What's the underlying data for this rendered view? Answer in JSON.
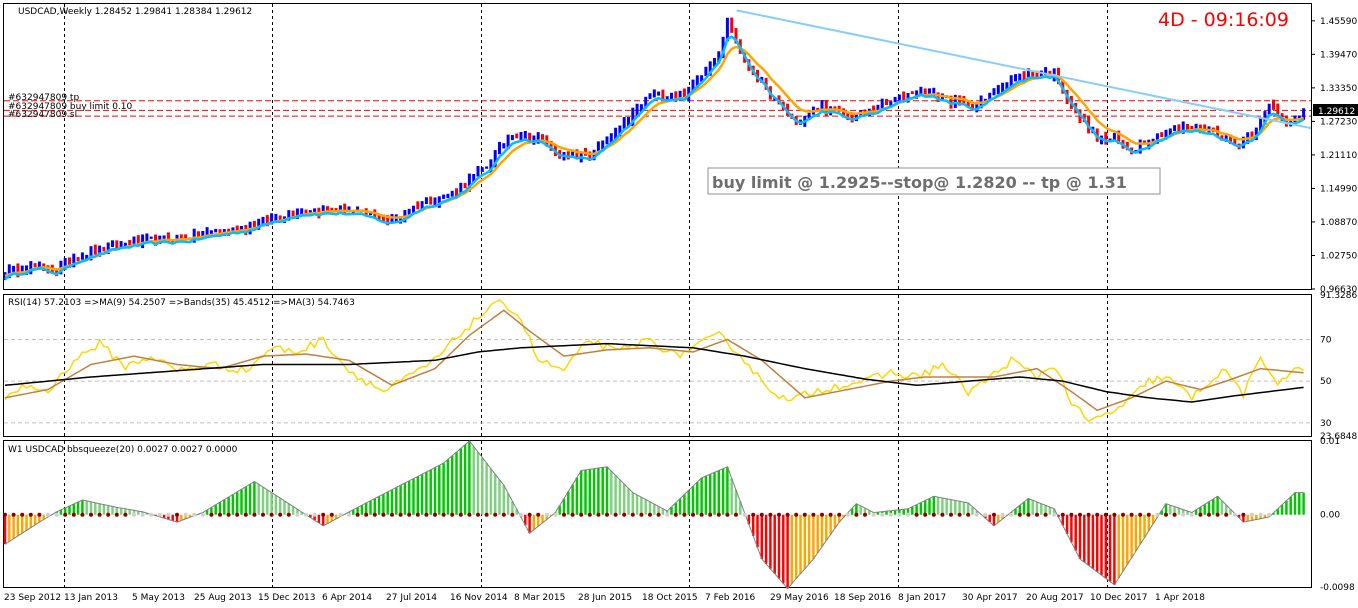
{
  "main_header": "USDCAD,Weekly  1.28452 1.29841 1.28384 1.29612",
  "timer": "4D - 09:16:09",
  "order_labels": [
    "#632947809 tp",
    "#632947809 buy limit 0.10",
    "#632947809 sl"
  ],
  "note": "buy limit @ 1.2925--stop@ 1.2820 -- tp @ 1.31",
  "current_price": "1.29612",
  "rsi_header": "RSI(14) 57.2103  =>MA(9) 54.2507  =>Bands(35) 45.4512  =>MA(3) 54.7463",
  "bb_header": "W1 USDCAD bbsqueeze(20) 0.0027 0.0027 0.0000",
  "x_axis_labels": [
    "23 Sep 2012",
    "13 Jan 2013",
    "5 May 2013",
    "25 Aug 2013",
    "15 Dec 2013",
    "6 Apr 2014",
    "27 Jul 2014",
    "16 Nov 2014",
    "8 Mar 2015",
    "28 Jun 2015",
    "18 Oct 2015",
    "7 Feb 2016",
    "29 May 2016",
    "18 Sep 2016",
    "8 Jan 2017",
    "30 Apr 2017",
    "20 Aug 2017",
    "10 Dec 2017",
    "1 Apr 2018"
  ],
  "colors": {
    "up_bar": "#0000ff",
    "down_bar": "#ff0000",
    "fast_ma": "#00bfff",
    "slow_ma": "#ffa500",
    "trendline": "#87cefa",
    "rsi": "#ffd700",
    "rsi_ma": "#c08040",
    "rsi_bands": "#000000",
    "bb_up": "#00c800",
    "bb_down": "#ff0000",
    "bb_orange": "#ffa500",
    "squeeze_on": "#8b0000",
    "squeeze_off": "#d0d0d0",
    "grid": "#000000"
  },
  "chart_data": [
    {
      "type": "candlestick-bars",
      "title": "USDCAD,Weekly",
      "y_ticks": [
        "1.45590",
        "1.39470",
        "1.33350",
        "1.27230",
        "1.21110",
        "1.14990",
        "1.08870",
        "1.02750",
        "0.96630"
      ],
      "ylim": [
        0.9663,
        1.4866
      ],
      "x_start": "2012-09-23",
      "x_end": "2018-04-22",
      "close_anchors": [
        [
          0,
          0.995
        ],
        [
          6,
          1.01
        ],
        [
          12,
          1.0
        ],
        [
          16,
          1.025
        ],
        [
          28,
          1.05
        ],
        [
          42,
          1.06
        ],
        [
          56,
          1.08
        ],
        [
          68,
          1.11
        ],
        [
          80,
          1.11
        ],
        [
          90,
          1.09
        ],
        [
          96,
          1.12
        ],
        [
          104,
          1.14
        ],
        [
          112,
          1.19
        ],
        [
          118,
          1.25
        ],
        [
          124,
          1.24
        ],
        [
          130,
          1.21
        ],
        [
          136,
          1.21
        ],
        [
          142,
          1.25
        ],
        [
          150,
          1.32
        ],
        [
          158,
          1.32
        ],
        [
          162,
          1.36
        ],
        [
          166,
          1.4
        ],
        [
          168,
          1.45
        ],
        [
          169,
          1.44
        ],
        [
          172,
          1.38
        ],
        [
          178,
          1.32
        ],
        [
          184,
          1.27
        ],
        [
          190,
          1.3
        ],
        [
          196,
          1.28
        ],
        [
          204,
          1.3
        ],
        [
          212,
          1.33
        ],
        [
          220,
          1.31
        ],
        [
          226,
          1.3
        ],
        [
          232,
          1.34
        ],
        [
          238,
          1.36
        ],
        [
          244,
          1.36
        ],
        [
          248,
          1.3
        ],
        [
          254,
          1.24
        ],
        [
          258,
          1.24
        ],
        [
          262,
          1.22
        ],
        [
          266,
          1.24
        ],
        [
          272,
          1.26
        ],
        [
          278,
          1.26
        ],
        [
          282,
          1.25
        ],
        [
          286,
          1.23
        ],
        [
          290,
          1.25
        ],
        [
          294,
          1.3
        ],
        [
          298,
          1.27
        ],
        [
          302,
          1.29
        ]
      ],
      "trendline_x": [
        "2015-12-28",
        "2018-04-22"
      ],
      "trendline_y": [
        1.475,
        1.26
      ],
      "buy_limit": 1.2925,
      "stop": 1.282,
      "tp": 1.31,
      "last_price": 1.29612
    },
    {
      "type": "line",
      "title": "RSI(14)",
      "y_ticks": [
        "91.3286",
        "70",
        "50",
        "30",
        "23.6848"
      ],
      "ylim": [
        23.6848,
        91.3286
      ],
      "series": [
        {
          "name": "RSI(14)",
          "anchors": [
            [
              0,
              40
            ],
            [
              4,
              48
            ],
            [
              10,
              45
            ],
            [
              16,
              60
            ],
            [
              22,
              68
            ],
            [
              28,
              57
            ],
            [
              34,
              62
            ],
            [
              40,
              55
            ],
            [
              48,
              58
            ],
            [
              56,
              55
            ],
            [
              62,
              66
            ],
            [
              68,
              64
            ],
            [
              74,
              70
            ],
            [
              80,
              55
            ],
            [
              88,
              45
            ],
            [
              94,
              52
            ],
            [
              100,
              60
            ],
            [
              106,
              73
            ],
            [
              112,
              84
            ],
            [
              116,
              88
            ],
            [
              120,
              80
            ],
            [
              124,
              60
            ],
            [
              130,
              55
            ],
            [
              136,
              70
            ],
            [
              142,
              64
            ],
            [
              150,
              70
            ],
            [
              156,
              62
            ],
            [
              162,
              68
            ],
            [
              166,
              72
            ],
            [
              170,
              65
            ],
            [
              176,
              50
            ],
            [
              182,
              40
            ],
            [
              188,
              45
            ],
            [
              194,
              48
            ],
            [
              200,
              50
            ],
            [
              206,
              54
            ],
            [
              212,
              52
            ],
            [
              218,
              58
            ],
            [
              224,
              45
            ],
            [
              228,
              50
            ],
            [
              234,
              60
            ],
            [
              240,
              52
            ],
            [
              244,
              58
            ],
            [
              248,
              40
            ],
            [
              252,
              30
            ],
            [
              256,
              34
            ],
            [
              260,
              38
            ],
            [
              266,
              50
            ],
            [
              270,
              52
            ],
            [
              276,
              42
            ],
            [
              280,
              50
            ],
            [
              284,
              55
            ],
            [
              288,
              44
            ],
            [
              292,
              60
            ],
            [
              296,
              50
            ],
            [
              302,
              57
            ]
          ]
        },
        {
          "name": "MA(9)",
          "anchors": [
            [
              0,
              42
            ],
            [
              10,
              46
            ],
            [
              20,
              58
            ],
            [
              30,
              62
            ],
            [
              40,
              58
            ],
            [
              50,
              56
            ],
            [
              60,
              62
            ],
            [
              70,
              63
            ],
            [
              80,
              60
            ],
            [
              90,
              48
            ],
            [
              100,
              56
            ],
            [
              108,
              72
            ],
            [
              116,
              84
            ],
            [
              122,
              74
            ],
            [
              130,
              62
            ],
            [
              140,
              65
            ],
            [
              150,
              66
            ],
            [
              160,
              64
            ],
            [
              168,
              70
            ],
            [
              176,
              60
            ],
            [
              186,
              42
            ],
            [
              196,
              46
            ],
            [
              206,
              50
            ],
            [
              214,
              52
            ],
            [
              222,
              52
            ],
            [
              230,
              52
            ],
            [
              240,
              56
            ],
            [
              248,
              45
            ],
            [
              254,
              36
            ],
            [
              262,
              42
            ],
            [
              270,
              50
            ],
            [
              278,
              46
            ],
            [
              284,
              50
            ],
            [
              292,
              56
            ],
            [
              302,
              54
            ]
          ]
        },
        {
          "name": "Bands(35)",
          "anchors": [
            [
              0,
              48
            ],
            [
              20,
              52
            ],
            [
              40,
              55
            ],
            [
              60,
              58
            ],
            [
              80,
              58
            ],
            [
              100,
              60
            ],
            [
              110,
              64
            ],
            [
              120,
              66
            ],
            [
              140,
              68
            ],
            [
              160,
              66
            ],
            [
              172,
              62
            ],
            [
              186,
              56
            ],
            [
              200,
              51
            ],
            [
              212,
              48
            ],
            [
              224,
              50
            ],
            [
              236,
              52
            ],
            [
              246,
              50
            ],
            [
              256,
              45
            ],
            [
              266,
              42
            ],
            [
              276,
              40
            ],
            [
              286,
              43
            ],
            [
              294,
              45
            ],
            [
              302,
              47
            ]
          ]
        }
      ]
    },
    {
      "type": "bar",
      "title": "bbsqueeze(20)",
      "y_ticks": [
        "0.01",
        "0.00",
        "-0.0098"
      ],
      "ylim": [
        -0.0098,
        0.01
      ],
      "anchors": [
        [
          0,
          -0.004
        ],
        [
          8,
          -0.001
        ],
        [
          12,
          0.0004
        ],
        [
          18,
          0.002
        ],
        [
          26,
          0.001
        ],
        [
          32,
          0.0004
        ],
        [
          40,
          -0.001
        ],
        [
          46,
          0.0003
        ],
        [
          58,
          0.0045
        ],
        [
          66,
          0.0015
        ],
        [
          74,
          -0.0015
        ],
        [
          82,
          0.001
        ],
        [
          92,
          0.004
        ],
        [
          102,
          0.007
        ],
        [
          108,
          0.01
        ],
        [
          116,
          0.004
        ],
        [
          122,
          -0.0025
        ],
        [
          128,
          0.0003
        ],
        [
          134,
          0.006
        ],
        [
          140,
          0.0065
        ],
        [
          146,
          0.003
        ],
        [
          154,
          0.0005
        ],
        [
          162,
          0.005
        ],
        [
          168,
          0.0065
        ],
        [
          176,
          -0.006
        ],
        [
          182,
          -0.01
        ],
        [
          188,
          -0.006
        ],
        [
          194,
          -0.001
        ],
        [
          198,
          0.0015
        ],
        [
          202,
          0.0003
        ],
        [
          210,
          0.0008
        ],
        [
          216,
          0.0025
        ],
        [
          224,
          0.0016
        ],
        [
          230,
          -0.0015
        ],
        [
          238,
          0.0022
        ],
        [
          244,
          0.0008
        ],
        [
          250,
          -0.006
        ],
        [
          258,
          -0.0095
        ],
        [
          264,
          -0.004
        ],
        [
          270,
          0.0015
        ],
        [
          276,
          0.0003
        ],
        [
          282,
          0.0025
        ],
        [
          288,
          -0.001
        ],
        [
          294,
          -0.0003
        ],
        [
          300,
          0.003
        ]
      ]
    }
  ]
}
